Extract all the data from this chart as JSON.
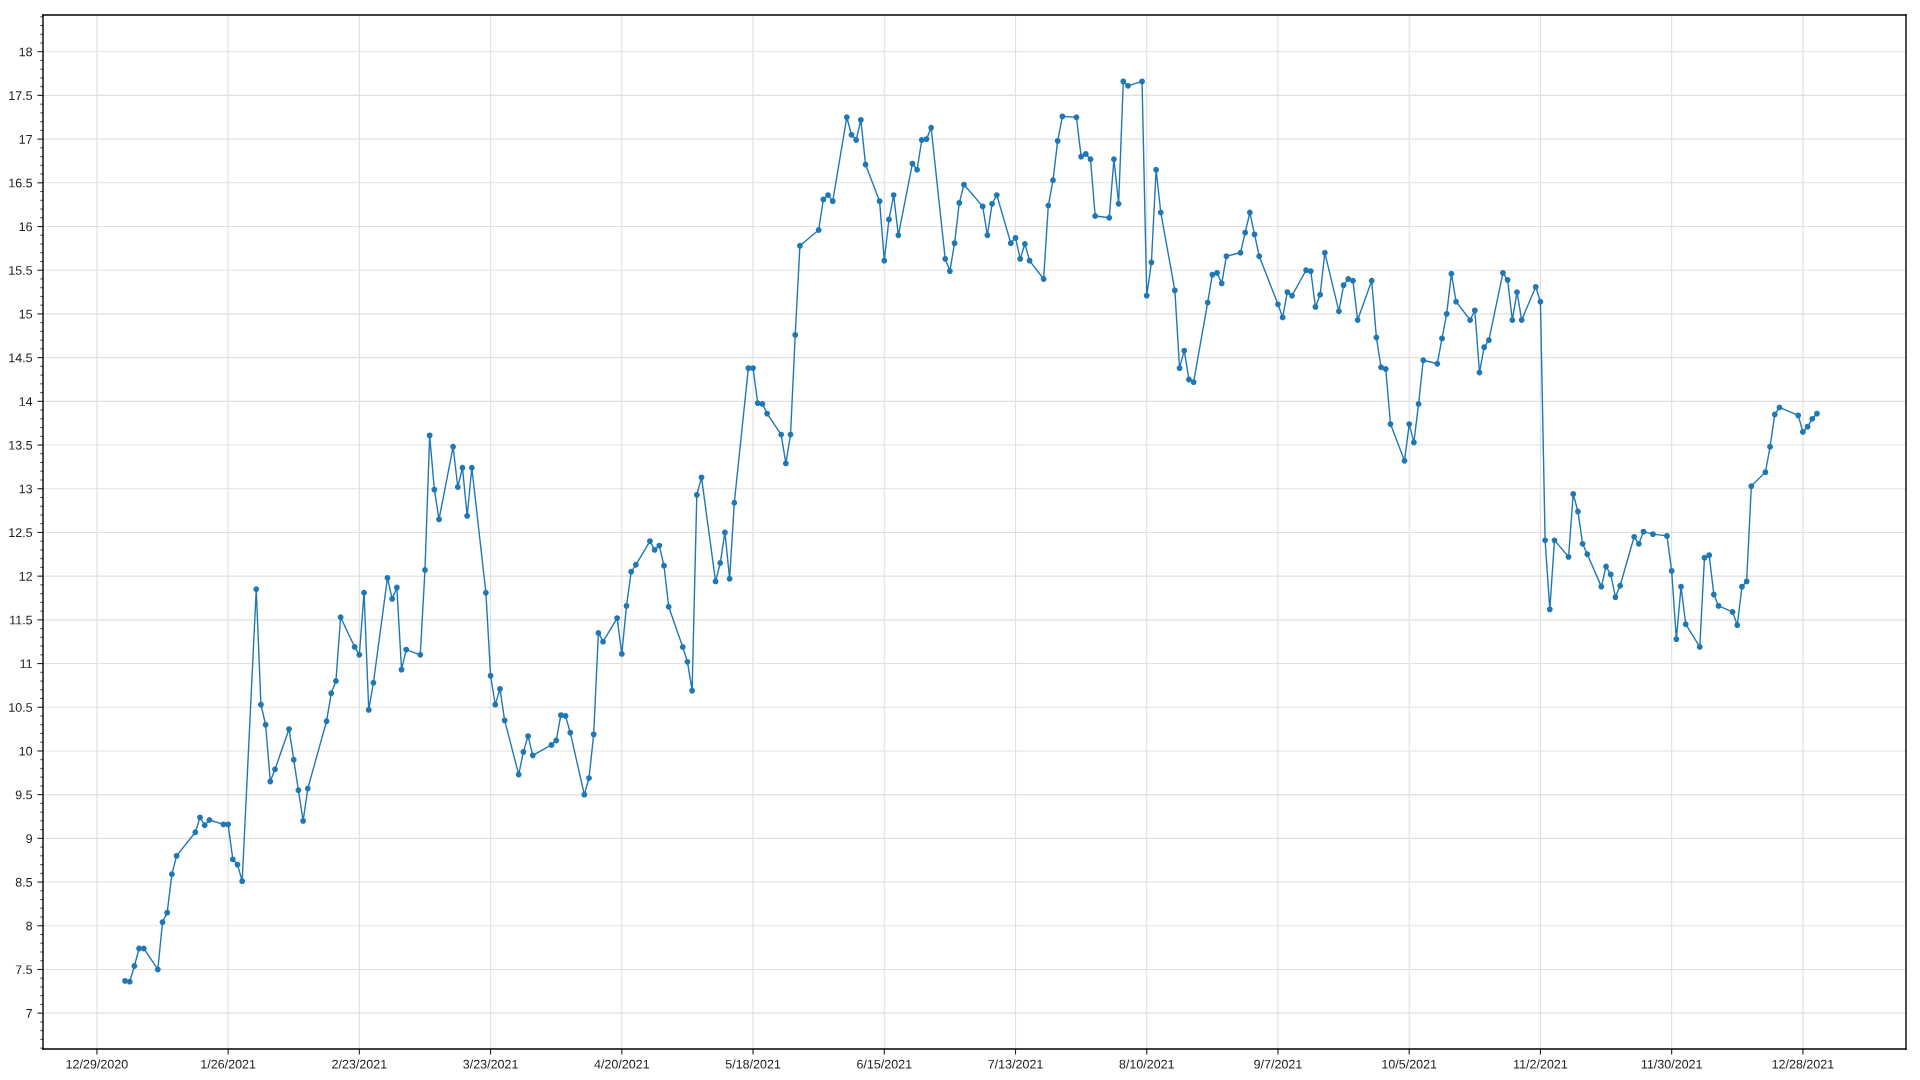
{
  "chart_data": {
    "type": "line",
    "x": [
      "2021-01-04",
      "2021-01-05",
      "2021-01-06",
      "2021-01-07",
      "2021-01-08",
      "2021-01-11",
      "2021-01-12",
      "2021-01-13",
      "2021-01-14",
      "2021-01-15",
      "2021-01-19",
      "2021-01-20",
      "2021-01-21",
      "2021-01-22",
      "2021-01-25",
      "2021-01-26",
      "2021-01-27",
      "2021-01-28",
      "2021-01-29",
      "2021-02-01",
      "2021-02-02",
      "2021-02-03",
      "2021-02-04",
      "2021-02-05",
      "2021-02-08",
      "2021-02-09",
      "2021-02-10",
      "2021-02-11",
      "2021-02-12",
      "2021-02-16",
      "2021-02-17",
      "2021-02-18",
      "2021-02-19",
      "2021-02-22",
      "2021-02-23",
      "2021-02-24",
      "2021-02-25",
      "2021-02-26",
      "2021-03-01",
      "2021-03-02",
      "2021-03-03",
      "2021-03-04",
      "2021-03-05",
      "2021-03-08",
      "2021-03-09",
      "2021-03-10",
      "2021-03-11",
      "2021-03-12",
      "2021-03-15",
      "2021-03-16",
      "2021-03-17",
      "2021-03-18",
      "2021-03-19",
      "2021-03-22",
      "2021-03-23",
      "2021-03-24",
      "2021-03-25",
      "2021-03-26",
      "2021-03-29",
      "2021-03-30",
      "2021-03-31",
      "2021-04-01",
      "2021-04-05",
      "2021-04-06",
      "2021-04-07",
      "2021-04-08",
      "2021-04-09",
      "2021-04-12",
      "2021-04-13",
      "2021-04-14",
      "2021-04-15",
      "2021-04-16",
      "2021-04-19",
      "2021-04-20",
      "2021-04-21",
      "2021-04-22",
      "2021-04-23",
      "2021-04-26",
      "2021-04-27",
      "2021-04-28",
      "2021-04-29",
      "2021-04-30",
      "2021-05-03",
      "2021-05-04",
      "2021-05-05",
      "2021-05-06",
      "2021-05-07",
      "2021-05-10",
      "2021-05-11",
      "2021-05-12",
      "2021-05-13",
      "2021-05-14",
      "2021-05-17",
      "2021-05-18",
      "2021-05-19",
      "2021-05-20",
      "2021-05-21",
      "2021-05-24",
      "2021-05-25",
      "2021-05-26",
      "2021-05-27",
      "2021-05-28",
      "2021-06-01",
      "2021-06-02",
      "2021-06-03",
      "2021-06-04",
      "2021-06-07",
      "2021-06-08",
      "2021-06-09",
      "2021-06-10",
      "2021-06-11",
      "2021-06-14",
      "2021-06-15",
      "2021-06-16",
      "2021-06-17",
      "2021-06-18",
      "2021-06-21",
      "2021-06-22",
      "2021-06-23",
      "2021-06-24",
      "2021-06-25",
      "2021-06-28",
      "2021-06-29",
      "2021-06-30",
      "2021-07-01",
      "2021-07-02",
      "2021-07-06",
      "2021-07-07",
      "2021-07-08",
      "2021-07-09",
      "2021-07-12",
      "2021-07-13",
      "2021-07-14",
      "2021-07-15",
      "2021-07-16",
      "2021-07-19",
      "2021-07-20",
      "2021-07-21",
      "2021-07-22",
      "2021-07-23",
      "2021-07-26",
      "2021-07-27",
      "2021-07-28",
      "2021-07-29",
      "2021-07-30",
      "2021-08-02",
      "2021-08-03",
      "2021-08-04",
      "2021-08-05",
      "2021-08-06",
      "2021-08-09",
      "2021-08-10",
      "2021-08-11",
      "2021-08-12",
      "2021-08-13",
      "2021-08-16",
      "2021-08-17",
      "2021-08-18",
      "2021-08-19",
      "2021-08-20",
      "2021-08-23",
      "2021-08-24",
      "2021-08-25",
      "2021-08-26",
      "2021-08-27",
      "2021-08-30",
      "2021-08-31",
      "2021-09-01",
      "2021-09-02",
      "2021-09-03",
      "2021-09-07",
      "2021-09-08",
      "2021-09-09",
      "2021-09-10",
      "2021-09-13",
      "2021-09-14",
      "2021-09-15",
      "2021-09-16",
      "2021-09-17",
      "2021-09-20",
      "2021-09-21",
      "2021-09-22",
      "2021-09-23",
      "2021-09-24",
      "2021-09-27",
      "2021-09-28",
      "2021-09-29",
      "2021-09-30",
      "2021-10-01",
      "2021-10-04",
      "2021-10-05",
      "2021-10-06",
      "2021-10-07",
      "2021-10-08",
      "2021-10-11",
      "2021-10-12",
      "2021-10-13",
      "2021-10-14",
      "2021-10-15",
      "2021-10-18",
      "2021-10-19",
      "2021-10-20",
      "2021-10-21",
      "2021-10-22",
      "2021-10-25",
      "2021-10-26",
      "2021-10-27",
      "2021-10-28",
      "2021-10-29",
      "2021-11-01",
      "2021-11-02",
      "2021-11-03",
      "2021-11-04",
      "2021-11-05",
      "2021-11-08",
      "2021-11-09",
      "2021-11-10",
      "2021-11-11",
      "2021-11-12",
      "2021-11-15",
      "2021-11-16",
      "2021-11-17",
      "2021-11-18",
      "2021-11-19",
      "2021-11-22",
      "2021-11-23",
      "2021-11-24",
      "2021-11-26",
      "2021-11-29",
      "2021-11-30",
      "2021-12-01",
      "2021-12-02",
      "2021-12-03",
      "2021-12-06",
      "2021-12-07",
      "2021-12-08",
      "2021-12-09",
      "2021-12-10",
      "2021-12-13",
      "2021-12-14",
      "2021-12-15",
      "2021-12-16",
      "2021-12-17",
      "2021-12-20",
      "2021-12-21",
      "2021-12-22",
      "2021-12-23",
      "2021-12-27",
      "2021-12-28",
      "2021-12-29",
      "2021-12-30",
      "2021-12-31"
    ],
    "series": [
      {
        "color": "#1f77b4",
        "values": [
          7.37,
          7.36,
          7.54,
          7.74,
          7.74,
          7.5,
          8.04,
          8.15,
          8.59,
          8.8,
          9.07,
          9.24,
          9.15,
          9.21,
          9.16,
          9.16,
          8.76,
          8.7,
          8.51,
          11.85,
          10.53,
          10.3,
          9.65,
          9.79,
          10.25,
          9.9,
          9.55,
          9.2,
          9.57,
          10.34,
          10.66,
          10.8,
          11.53,
          11.19,
          11.1,
          11.81,
          10.47,
          10.78,
          11.98,
          11.74,
          11.87,
          10.93,
          11.16,
          11.1,
          12.07,
          13.61,
          12.99,
          12.65,
          13.48,
          13.02,
          13.24,
          12.69,
          13.24,
          11.81,
          10.86,
          10.53,
          10.71,
          10.35,
          9.73,
          9.99,
          10.17,
          9.95,
          10.07,
          10.12,
          10.41,
          10.4,
          10.21,
          9.5,
          9.69,
          10.19,
          11.35,
          11.25,
          11.52,
          11.11,
          11.66,
          12.05,
          12.13,
          12.4,
          12.3,
          12.35,
          12.12,
          11.65,
          11.19,
          11.02,
          10.69,
          12.93,
          13.13,
          11.94,
          12.15,
          12.5,
          11.97,
          12.84,
          14.38,
          14.38,
          13.98,
          13.97,
          13.86,
          13.62,
          13.29,
          13.62,
          14.76,
          15.78,
          15.96,
          16.31,
          16.36,
          16.29,
          17.25,
          17.05,
          16.99,
          17.22,
          16.71,
          16.29,
          15.61,
          16.08,
          16.36,
          15.9,
          16.72,
          16.65,
          16.99,
          17.0,
          17.13,
          15.63,
          15.49,
          15.81,
          16.27,
          16.48,
          16.23,
          15.9,
          16.26,
          16.36,
          15.81,
          15.87,
          15.63,
          15.8,
          15.61,
          15.4,
          16.24,
          16.53,
          16.98,
          17.26,
          17.25,
          16.8,
          16.83,
          16.77,
          16.12,
          16.1,
          16.77,
          16.26,
          17.66,
          17.61,
          17.66,
          15.21,
          15.59,
          16.65,
          16.16,
          15.27,
          14.38,
          14.58,
          14.25,
          14.22,
          15.13,
          15.45,
          15.47,
          15.35,
          15.66,
          15.7,
          15.93,
          16.16,
          15.91,
          15.66,
          15.11,
          14.96,
          15.25,
          15.21,
          15.5,
          15.49,
          15.08,
          15.22,
          15.7,
          15.03,
          15.33,
          15.4,
          15.38,
          14.93,
          15.38,
          14.73,
          14.39,
          14.37,
          13.74,
          13.32,
          13.74,
          13.53,
          13.97,
          14.47,
          14.43,
          14.72,
          15.0,
          15.46,
          15.14,
          14.93,
          15.04,
          14.33,
          14.62,
          14.7,
          15.47,
          15.39,
          14.93,
          15.25,
          14.93,
          15.31,
          15.14,
          12.41,
          11.62,
          12.41,
          12.22,
          12.94,
          12.74,
          12.37,
          12.25,
          11.88,
          12.11,
          12.02,
          11.76,
          11.89,
          12.45,
          12.37,
          12.51,
          12.48,
          12.46,
          12.06,
          11.28,
          11.88,
          11.45,
          11.19,
          12.21,
          12.24,
          11.79,
          11.66,
          11.59,
          11.44,
          11.88,
          11.94,
          13.03,
          13.19,
          13.48,
          13.85,
          13.93,
          13.84,
          13.65,
          13.71,
          13.8,
          13.86
        ]
      }
    ],
    "xlim": [
      "2020-12-17T12:00",
      "2022-01-19"
    ],
    "xticks": [
      {
        "value": "2020-12-29",
        "label": "12/29/2020"
      },
      {
        "value": "2021-01-26",
        "label": "1/26/2021"
      },
      {
        "value": "2021-02-23",
        "label": "2/23/2021"
      },
      {
        "value": "2021-03-23",
        "label": "3/23/2021"
      },
      {
        "value": "2021-04-20",
        "label": "4/20/2021"
      },
      {
        "value": "2021-05-18",
        "label": "5/18/2021"
      },
      {
        "value": "2021-06-15",
        "label": "6/15/2021"
      },
      {
        "value": "2021-07-13",
        "label": "7/13/2021"
      },
      {
        "value": "2021-08-10",
        "label": "8/10/2021"
      },
      {
        "value": "2021-09-07",
        "label": "9/7/2021"
      },
      {
        "value": "2021-10-05",
        "label": "10/5/2021"
      },
      {
        "value": "2021-11-02",
        "label": "11/2/2021"
      },
      {
        "value": "2021-11-30",
        "label": "11/30/2021"
      },
      {
        "value": "2021-12-28",
        "label": "12/28/2021"
      }
    ],
    "ylim": [
      6.59,
      18.42
    ],
    "yticks": [
      7,
      7.5,
      8,
      8.5,
      9,
      9.5,
      10,
      10.5,
      11,
      11.5,
      12,
      12.5,
      13,
      13.5,
      14,
      14.5,
      15,
      15.5,
      16,
      16.5,
      17,
      17.5,
      18
    ],
    "grid": true,
    "marker": "circle",
    "line_style": "solid"
  }
}
